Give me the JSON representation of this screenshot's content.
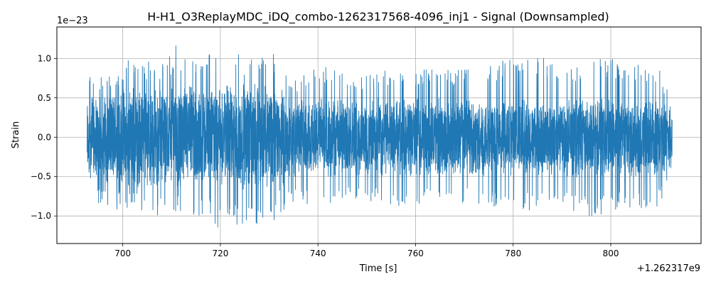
{
  "chart_data": {
    "type": "line",
    "title": "H-H1_O3ReplayMDC_iDQ_combo-1262317568-4096_inj1 - Signal (Downsampled)",
    "xlabel": "Time [s]",
    "ylabel": "Strain",
    "x_offset_label": "+1.262317e9",
    "y_scale_label": "1e−23",
    "xlim": [
      686.5,
      818.5
    ],
    "ylim": [
      -1.35,
      1.4
    ],
    "xticks": [
      700,
      720,
      740,
      760,
      780,
      800
    ],
    "xtick_labels": [
      "700",
      "720",
      "740",
      "760",
      "780",
      "800"
    ],
    "yticks": [
      -1.0,
      -0.5,
      0.0,
      0.5,
      1.0
    ],
    "ytick_labels": [
      "−1.0",
      "−0.5",
      "0.0",
      "0.5",
      "1.0"
    ],
    "grid": true,
    "color": "#1f77b4",
    "series": [
      {
        "x_start": 692.7,
        "x_end": 812.6,
        "envelope_x": [
          692.7,
          693.2,
          694,
          696,
          698,
          700,
          702,
          704,
          706,
          708,
          710,
          711,
          712,
          714,
          716,
          718,
          719.5,
          720,
          722,
          724,
          726,
          728,
          730,
          732,
          733.5,
          734,
          736,
          740,
          745,
          750,
          755,
          760,
          765,
          770,
          775,
          780,
          785,
          790,
          795,
          798,
          800,
          805,
          810,
          812.6
        ],
        "envelope_upper": [
          0.8,
          0.87,
          0.75,
          0.8,
          0.78,
          0.95,
          1.02,
          0.97,
          0.98,
          0.95,
          1.05,
          1.27,
          1.0,
          1.04,
          1.0,
          1.1,
          1.08,
          1.02,
          1.0,
          1.07,
          1.0,
          1.05,
          1.13,
          1.05,
          0.95,
          0.7,
          0.75,
          0.92,
          0.87,
          0.78,
          0.88,
          0.85,
          0.88,
          0.87,
          0.93,
          1.0,
          1.05,
          0.93,
          0.95,
          1.03,
          1.0,
          0.95,
          0.85,
          0.5
        ],
        "envelope_lower": [
          -0.5,
          -0.75,
          -0.82,
          -0.85,
          -0.97,
          -0.9,
          -0.92,
          -0.97,
          -0.98,
          -1.0,
          -0.97,
          -1.0,
          -0.98,
          -1.03,
          -1.05,
          -1.0,
          -1.18,
          -1.1,
          -1.02,
          -1.2,
          -1.12,
          -1.1,
          -1.18,
          -1.05,
          -0.93,
          -0.8,
          -0.85,
          -0.88,
          -0.82,
          -0.8,
          -0.88,
          -0.85,
          -0.82,
          -0.85,
          -0.88,
          -0.9,
          -0.95,
          -0.92,
          -1.0,
          -1.0,
          -0.95,
          -0.9,
          -0.88,
          -0.45
        ],
        "typical_amplitude": [
          0.5,
          0.55,
          0.5,
          0.52,
          0.55,
          0.58,
          0.6,
          0.6,
          0.58,
          0.6,
          0.6,
          0.62,
          0.6,
          0.62,
          0.6,
          0.6,
          0.6,
          0.6,
          0.6,
          0.62,
          0.6,
          0.6,
          0.62,
          0.6,
          0.55,
          0.45,
          0.45,
          0.45,
          0.45,
          0.45,
          0.45,
          0.45,
          0.45,
          0.45,
          0.45,
          0.45,
          0.45,
          0.45,
          0.45,
          0.45,
          0.45,
          0.45,
          0.45,
          0.4
        ]
      }
    ]
  }
}
